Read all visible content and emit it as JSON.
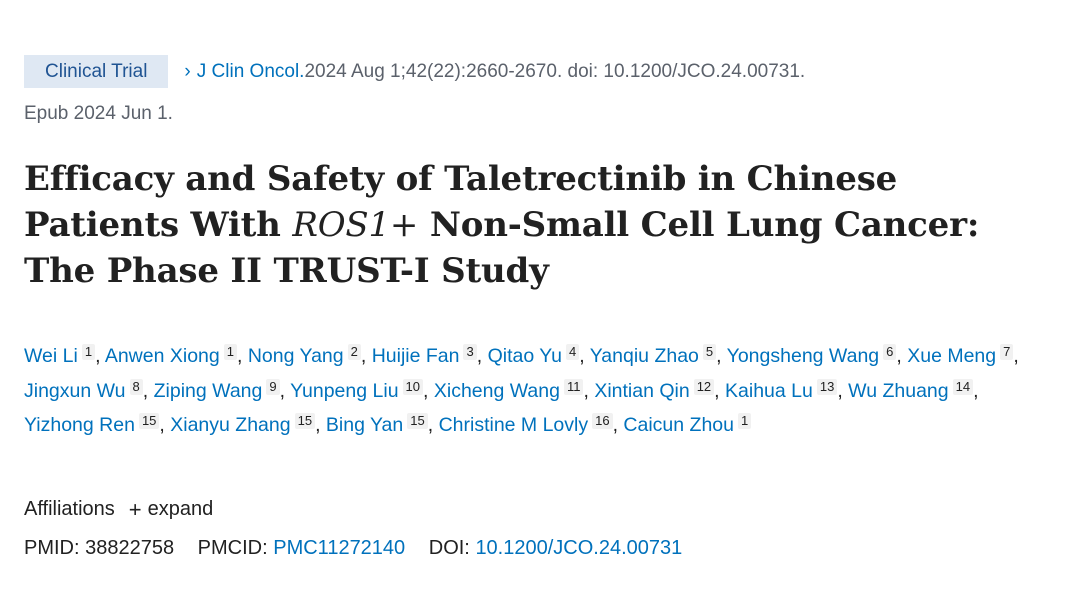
{
  "badge": "Clinical Trial",
  "citation": {
    "chevron": "›",
    "journal": "J Clin Oncol.",
    "details": " 2024 Aug 1;42(22):2660-2670. doi: 10.1200/JCO.24.00731.",
    "epub": "Epub 2024 Jun 1."
  },
  "title": {
    "part1": "Efficacy and Safety of Taletrectinib in Chinese Patients With ",
    "italic": "ROS1+",
    "part2": " Non-Small Cell Lung Cancer: The Phase II TRUST-I Study"
  },
  "authors": [
    {
      "name": "Wei Li",
      "aff": "1"
    },
    {
      "name": "Anwen Xiong",
      "aff": "1"
    },
    {
      "name": "Nong Yang",
      "aff": "2"
    },
    {
      "name": "Huijie Fan",
      "aff": "3"
    },
    {
      "name": "Qitao Yu",
      "aff": "4"
    },
    {
      "name": "Yanqiu Zhao",
      "aff": "5"
    },
    {
      "name": "Yongsheng Wang",
      "aff": "6"
    },
    {
      "name": "Xue Meng",
      "aff": "7"
    },
    {
      "name": "Jingxun Wu",
      "aff": "8"
    },
    {
      "name": "Ziping Wang",
      "aff": "9"
    },
    {
      "name": "Yunpeng Liu",
      "aff": "10"
    },
    {
      "name": "Xicheng Wang",
      "aff": "11"
    },
    {
      "name": "Xintian Qin",
      "aff": "12"
    },
    {
      "name": "Kaihua Lu",
      "aff": "13"
    },
    {
      "name": "Wu Zhuang",
      "aff": "14"
    },
    {
      "name": "Yizhong Ren",
      "aff": "15"
    },
    {
      "name": "Xianyu Zhang",
      "aff": "15"
    },
    {
      "name": "Bing Yan",
      "aff": "15"
    },
    {
      "name": "Christine M Lovly",
      "aff": "16"
    },
    {
      "name": "Caicun Zhou",
      "aff": "1"
    }
  ],
  "affiliations": {
    "label": "Affiliations",
    "plus": "+",
    "expand": "expand"
  },
  "ids": {
    "pmid_label": "PMID:",
    "pmid": "38822758",
    "pmcid_label": "PMCID:",
    "pmcid": "PMC11272140",
    "doi_label": "DOI:",
    "doi": "10.1200/JCO.24.00731"
  }
}
